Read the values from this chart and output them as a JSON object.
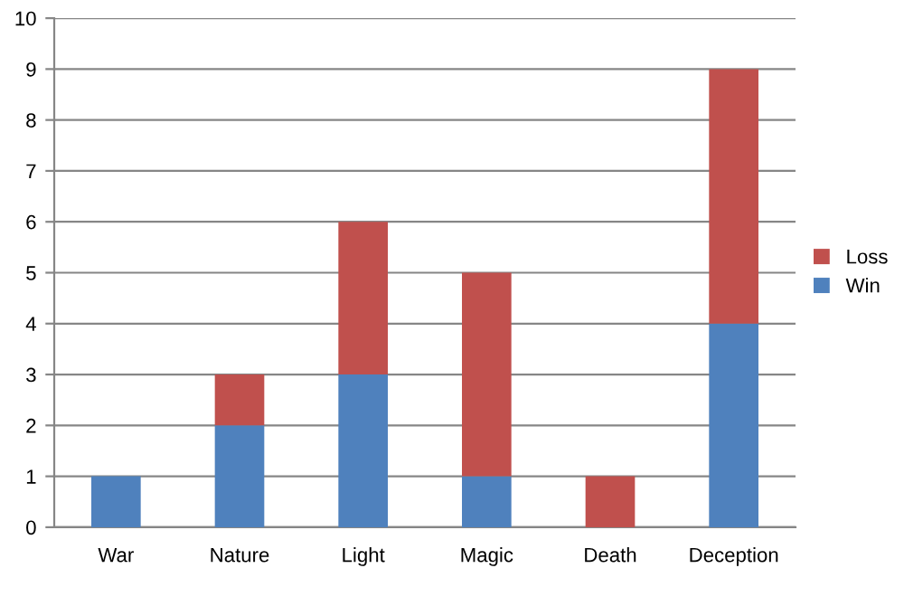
{
  "chart_data": {
    "type": "bar",
    "stacked": true,
    "categories": [
      "War",
      "Nature",
      "Light",
      "Magic",
      "Death",
      "Deception"
    ],
    "series": [
      {
        "name": "Win",
        "color": "#4f81bd",
        "values": [
          1,
          2,
          3,
          1,
          0,
          4
        ]
      },
      {
        "name": "Loss",
        "color": "#c0504d",
        "values": [
          0,
          1,
          3,
          4,
          1,
          5
        ]
      }
    ],
    "ylim": [
      0,
      10
    ],
    "yticks": [
      0,
      1,
      2,
      3,
      4,
      5,
      6,
      7,
      8,
      9,
      10
    ],
    "grid": "y",
    "legend": "right"
  }
}
